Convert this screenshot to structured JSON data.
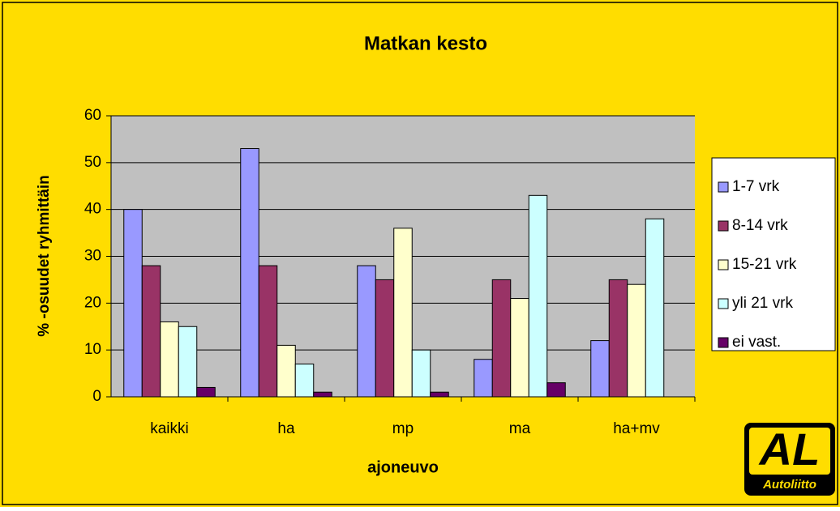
{
  "chart_data": {
    "type": "bar",
    "title": "Matkan kesto",
    "x_label": "ajoneuvo",
    "y_label": "% -osuudet ryhmittäin",
    "categories": [
      "kaikki",
      "ha",
      "mp",
      "ma",
      "ha+mv"
    ],
    "series": [
      {
        "name": "1-7 vrk",
        "color": "#9999ff",
        "values": [
          40,
          53,
          28,
          8,
          12
        ]
      },
      {
        "name": "8-14 vrk",
        "color": "#993366",
        "values": [
          28,
          28,
          25,
          25,
          25
        ]
      },
      {
        "name": "15-21 vrk",
        "color": "#ffffcc",
        "values": [
          16,
          11,
          36,
          21,
          24
        ]
      },
      {
        "name": "yli 21 vrk",
        "color": "#ccffff",
        "values": [
          15,
          7,
          10,
          43,
          38
        ]
      },
      {
        "name": "ei vast.",
        "color": "#660066",
        "values": [
          2,
          1,
          1,
          3,
          0
        ]
      }
    ],
    "ylim": [
      0,
      60
    ],
    "yticks": [
      0,
      10,
      20,
      30,
      40,
      50,
      60
    ],
    "grid": true,
    "legend": "right",
    "logo": {
      "mark": "AL",
      "name": "Autoliitto"
    }
  }
}
